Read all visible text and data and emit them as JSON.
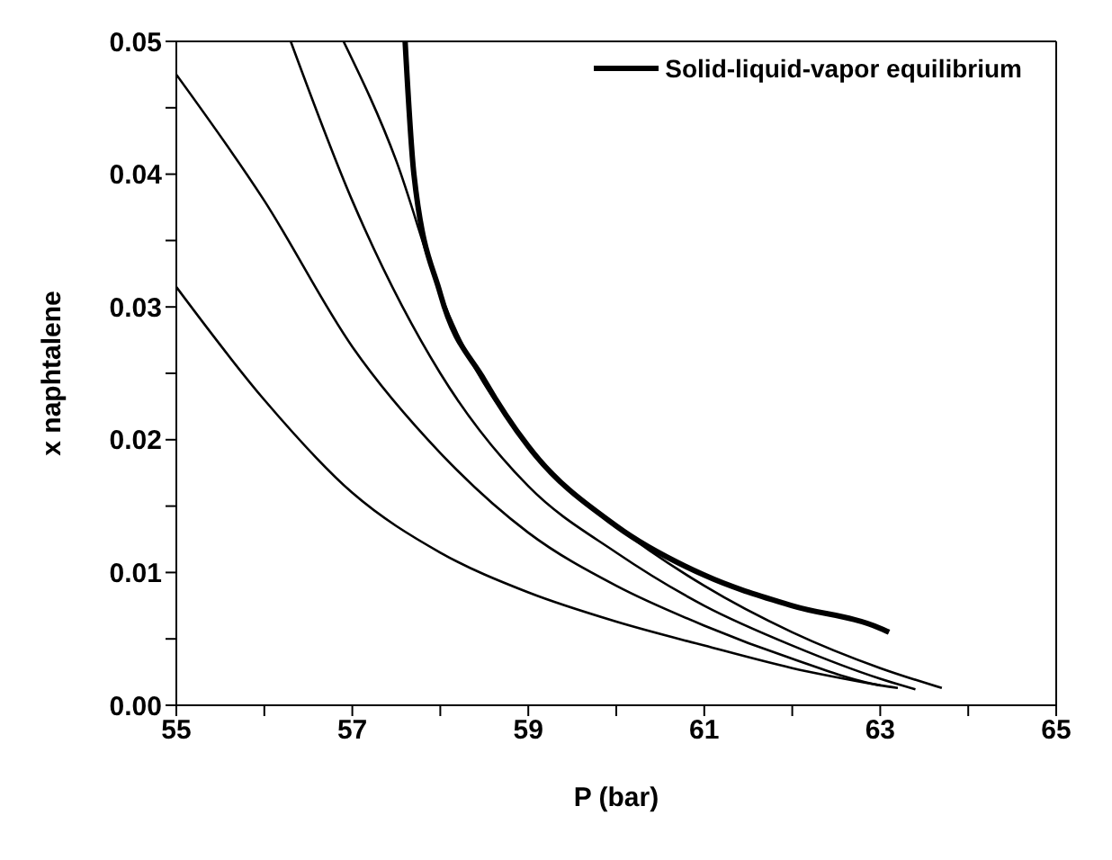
{
  "chart_data": {
    "type": "line",
    "xlabel": "P (bar)",
    "ylabel": "x naphtalene",
    "xlim": [
      55,
      65
    ],
    "ylim": [
      0,
      0.05
    ],
    "xticks": [
      55,
      {
        "value": 56,
        "label": null
      },
      57,
      {
        "value": 58,
        "label": null
      },
      59,
      {
        "value": 60,
        "label": null
      },
      61,
      {
        "value": 62,
        "label": null
      },
      63,
      {
        "value": 64,
        "label": null
      },
      65
    ],
    "yticks": [
      {
        "value": 0,
        "label": "0.00"
      },
      {
        "value": 0.005,
        "label": null
      },
      {
        "value": 0.01,
        "label": "0.01"
      },
      {
        "value": 0.015,
        "label": null
      },
      {
        "value": 0.02,
        "label": "0.02"
      },
      {
        "value": 0.025,
        "label": null
      },
      {
        "value": 0.03,
        "label": "0.03"
      },
      {
        "value": 0.035,
        "label": null
      },
      {
        "value": 0.04,
        "label": "0.04"
      },
      {
        "value": 0.045,
        "label": null
      },
      {
        "value": 0.05,
        "label": "0.05"
      }
    ],
    "legend": "top right",
    "marker": "none",
    "line_style": "solid",
    "series": [
      {
        "color": "#000000",
        "x": [
          55,
          56,
          57,
          58,
          59,
          60,
          61,
          62,
          63
        ],
        "values": [
          0.0315,
          0.023,
          0.016,
          0.0115,
          0.0085,
          0.0063,
          0.0045,
          0.0028,
          0.0015
        ]
      },
      {
        "color": "#000000",
        "x": [
          55,
          56,
          57,
          58,
          59,
          60,
          61,
          62,
          63,
          63.2
        ],
        "values": [
          0.0475,
          0.038,
          0.027,
          0.019,
          0.013,
          0.009,
          0.006,
          0.0035,
          0.0015,
          0.0013
        ]
      },
      {
        "color": "#000000",
        "x": [
          56.3,
          57,
          58,
          59,
          60,
          61,
          62,
          63,
          63.4
        ],
        "values": [
          0.05,
          0.038,
          0.025,
          0.0165,
          0.0115,
          0.0075,
          0.0045,
          0.002,
          0.0012
        ]
      },
      {
        "color": "#000000",
        "x": [
          56.9,
          57.5,
          58,
          59,
          60,
          61,
          62,
          63,
          63.7
        ],
        "values": [
          0.05,
          0.041,
          0.031,
          0.0195,
          0.0135,
          0.009,
          0.0055,
          0.0028,
          0.0013
        ]
      },
      {
        "name": "Solid-liquid-vapor equilibrium",
        "color": "#000000",
        "x": [
          57.6,
          57.7,
          58,
          58.5,
          59,
          60,
          61,
          62,
          63,
          63.1
        ],
        "values": [
          0.05,
          0.04,
          0.031,
          0.0245,
          0.0195,
          0.0135,
          0.0098,
          0.0075,
          0.0058,
          0.0055
        ]
      }
    ]
  }
}
